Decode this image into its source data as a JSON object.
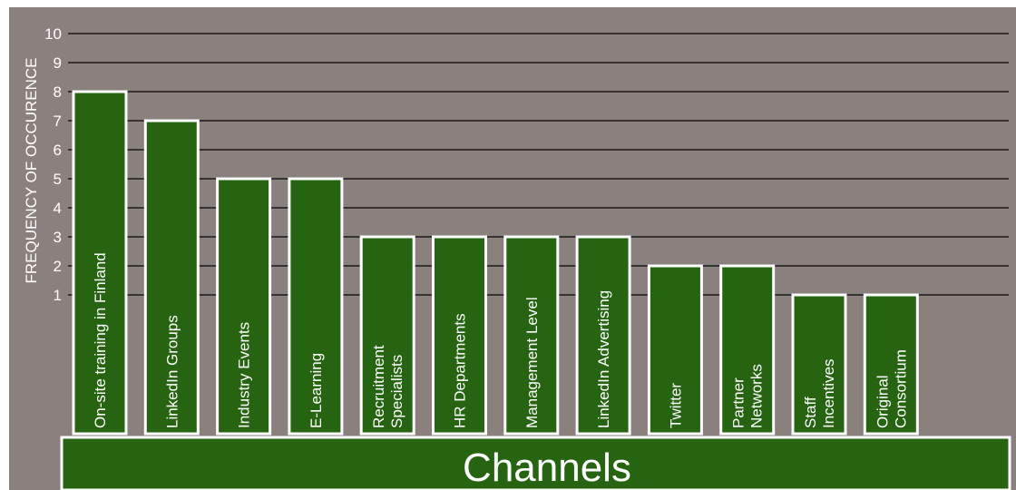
{
  "colors": {
    "page_background": "#ffffff",
    "plot_background": "#8a817f",
    "bar_fill": "#276412",
    "bar_stroke": "#ffffff",
    "grid_line": "#1a1a1a",
    "text": "#ffffff"
  },
  "chart_data": {
    "type": "bar",
    "title": "",
    "xlabel": "Channels",
    "ylabel": "FREQUENCY OF OCCURENCE",
    "ylim": [
      0,
      10
    ],
    "yticks": [
      "10",
      "9",
      "8",
      "7",
      "6",
      "5",
      "4",
      "3",
      "2",
      "1"
    ],
    "grid": true,
    "categories": [
      [
        "On-site training in Finland"
      ],
      [
        "LinkedIn Groups"
      ],
      [
        "Industry Events"
      ],
      [
        "E-Learning"
      ],
      [
        "Recruitment",
        "Specialists"
      ],
      [
        "HR Departments"
      ],
      [
        "Management Level"
      ],
      [
        "LinkedIn Advertising"
      ],
      [
        "Twitter"
      ],
      [
        "Partner",
        "Networks"
      ],
      [
        "Staff",
        "Incentives"
      ],
      [
        "Original",
        "Consortium"
      ]
    ],
    "values": [
      8,
      7,
      5,
      5,
      3,
      3,
      3,
      3,
      2,
      2,
      1,
      1
    ]
  }
}
